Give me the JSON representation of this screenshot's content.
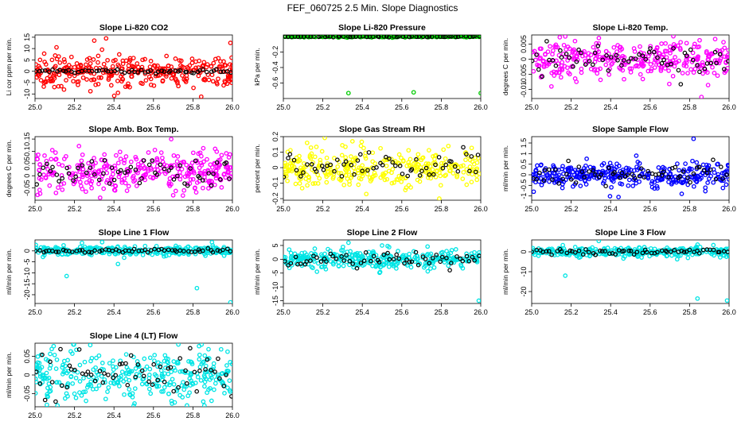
{
  "suptitle": "FEF_060725  2.5 Min. Slope Diagnostics",
  "chart_data": [
    {
      "type": "scatter",
      "title": "Slope Li-820 CO2",
      "ylabel": "Li cor ppm per min.",
      "color": "#ff0000",
      "xlim": [
        25.0,
        26.0
      ],
      "ylim": [
        -12,
        16
      ],
      "xticks": [
        "25.0",
        "25.2",
        "25.4",
        "25.6",
        "25.8",
        "26.0"
      ],
      "yticks": [
        -10,
        -5,
        0,
        5,
        10,
        15
      ],
      "spread": 3.2,
      "black_spread": 0.4,
      "center": 0,
      "outliers": [
        [
          25.3,
          13.5
        ],
        [
          25.36,
          14.5
        ],
        [
          25.42,
          -9.5
        ],
        [
          25.99,
          12.5
        ],
        [
          25.12,
          6.5
        ],
        [
          25.48,
          -7
        ]
      ]
    },
    {
      "type": "scatter",
      "title": "Slope Li-820 Pressure",
      "ylabel": "kPa per min.",
      "color": "#00cc00",
      "xlim": [
        25.0,
        26.0
      ],
      "ylim": [
        -0.8,
        0.02
      ],
      "xticks": [
        "25.0",
        "25.2",
        "25.4",
        "25.6",
        "25.8",
        "26.0"
      ],
      "yticks": [
        -0.6,
        -0.4,
        -0.2
      ],
      "spread": 0.005,
      "black_spread": 0.004,
      "center": 0,
      "outliers": [
        [
          25.33,
          -0.73
        ],
        [
          25.66,
          -0.72
        ],
        [
          26.0,
          -0.73
        ]
      ]
    },
    {
      "type": "scatter",
      "title": "Slope Li-820 Temp.",
      "ylabel": "degrees C per min.",
      "color": "#ff00ff",
      "xlim": [
        25.0,
        26.0
      ],
      "ylim": [
        -0.013,
        0.008
      ],
      "xticks": [
        "25.0",
        "25.2",
        "25.4",
        "25.6",
        "25.8",
        "26.0"
      ],
      "yticks": [
        -0.01,
        -0.005,
        0,
        0.005
      ],
      "spread": 0.003,
      "black_spread": 0.0025,
      "center": 0,
      "outliers": [
        [
          25.17,
          0.0075
        ],
        [
          25.86,
          -0.0125
        ],
        [
          25.1,
          -0.009
        ]
      ]
    },
    {
      "type": "scatter",
      "title": "Slope Amb. Box Temp.",
      "ylabel": "degrees C per min.",
      "color": "#ff00ff",
      "xlim": [
        25.0,
        26.0
      ],
      "ylim": [
        -0.1,
        0.16
      ],
      "xticks": [
        "25.0",
        "25.2",
        "25.4",
        "25.6",
        "25.8",
        "26.0"
      ],
      "yticks": [
        -0.05,
        0,
        0.05,
        0.1,
        0.15
      ],
      "spread": 0.04,
      "black_spread": 0.03,
      "center": 0.015,
      "outliers": [
        [
          25.69,
          0.15
        ],
        [
          25.33,
          -0.09
        ],
        [
          25.7,
          -0.08
        ]
      ]
    },
    {
      "type": "scatter",
      "title": "Slope Gas Stream RH",
      "ylabel": "percent per min.",
      "color": "#ffff00",
      "xlim": [
        25.0,
        26.0
      ],
      "ylim": [
        -0.21,
        0.2
      ],
      "xticks": [
        "25.0",
        "25.2",
        "25.4",
        "25.6",
        "25.8",
        "26.0"
      ],
      "yticks": [
        -0.2,
        -0.1,
        0,
        0.1,
        0.2
      ],
      "spread": 0.06,
      "black_spread": 0.05,
      "center": 0,
      "outliers": [
        [
          25.35,
          0.17
        ],
        [
          25.42,
          -0.17
        ],
        [
          25.79,
          -0.2
        ],
        [
          25.12,
          0.16
        ]
      ]
    },
    {
      "type": "scatter",
      "title": "Slope Sample Flow",
      "ylabel": "ml/min per min.",
      "color": "#0000ff",
      "xlim": [
        25.0,
        26.0
      ],
      "ylim": [
        -1.2,
        1.8
      ],
      "xticks": [
        "25.0",
        "25.2",
        "25.4",
        "25.6",
        "25.8",
        "26.0"
      ],
      "yticks": [
        -1,
        -0.5,
        0,
        0.5,
        1,
        1.5
      ],
      "spread": 0.28,
      "black_spread": 0.25,
      "center": 0,
      "outliers": [
        [
          25.82,
          1.7
        ],
        [
          25.44,
          -1.05
        ],
        [
          25.76,
          -0.9
        ],
        [
          25.01,
          -0.8
        ],
        [
          25.53,
          0.9
        ]
      ]
    },
    {
      "type": "scatter",
      "title": "Slope Line 1 Flow",
      "ylabel": "ml/min per min.",
      "color": "#00e5e5",
      "xlim": [
        25.0,
        26.0
      ],
      "ylim": [
        -24,
        5
      ],
      "xticks": [
        "25.0",
        "25.2",
        "25.4",
        "25.6",
        "25.8",
        "26.0"
      ],
      "yticks": [
        -20,
        -15,
        -10,
        -5,
        0
      ],
      "spread": 1.0,
      "black_spread": 0.4,
      "center": 0,
      "outliers": [
        [
          25.16,
          -11.5
        ],
        [
          25.82,
          -17
        ],
        [
          25.99,
          -23.5
        ],
        [
          25.34,
          4
        ],
        [
          25.42,
          -6
        ]
      ]
    },
    {
      "type": "scatter",
      "title": "Slope Line 2 Flow",
      "ylabel": "ml/min per min.",
      "color": "#00e5e5",
      "xlim": [
        25.0,
        26.0
      ],
      "ylim": [
        -16,
        7
      ],
      "xticks": [
        "25.0",
        "25.2",
        "25.4",
        "25.6",
        "25.8",
        "26.0"
      ],
      "yticks": [
        -15,
        -10,
        -5,
        0,
        5
      ],
      "spread": 1.6,
      "black_spread": 1.2,
      "center": 0,
      "outliers": [
        [
          25.99,
          -15
        ],
        [
          25.17,
          -4.5
        ],
        [
          25.33,
          6
        ],
        [
          25.5,
          5
        ]
      ]
    },
    {
      "type": "scatter",
      "title": "Slope Line 3 Flow",
      "ylabel": "ml/min per min.",
      "color": "#00e5e5",
      "xlim": [
        25.0,
        26.0
      ],
      "ylim": [
        -26,
        6
      ],
      "xticks": [
        "25.0",
        "25.2",
        "25.4",
        "25.6",
        "25.8",
        "26.0"
      ],
      "yticks": [
        -20,
        -10,
        0
      ],
      "spread": 1.2,
      "black_spread": 0.8,
      "center": 0,
      "outliers": [
        [
          25.17,
          -12
        ],
        [
          25.34,
          5.5
        ],
        [
          25.84,
          -23.5
        ],
        [
          25.99,
          -24.5
        ]
      ]
    },
    {
      "type": "scatter",
      "title": "Slope Line 4 (LT) Flow",
      "ylabel": "ml/min per min.",
      "color": "#00e5e5",
      "xlim": [
        25.0,
        26.0
      ],
      "ylim": [
        -0.085,
        0.085
      ],
      "xticks": [
        "25.0",
        "25.2",
        "25.4",
        "25.6",
        "25.8",
        "26.0"
      ],
      "yticks": [
        -0.05,
        0,
        0.05
      ],
      "spread": 0.035,
      "black_spread": 0.03,
      "center": 0,
      "outliers": [
        [
          25.28,
          0.08
        ],
        [
          25.06,
          -0.08
        ],
        [
          25.5,
          -0.082
        ]
      ]
    }
  ]
}
